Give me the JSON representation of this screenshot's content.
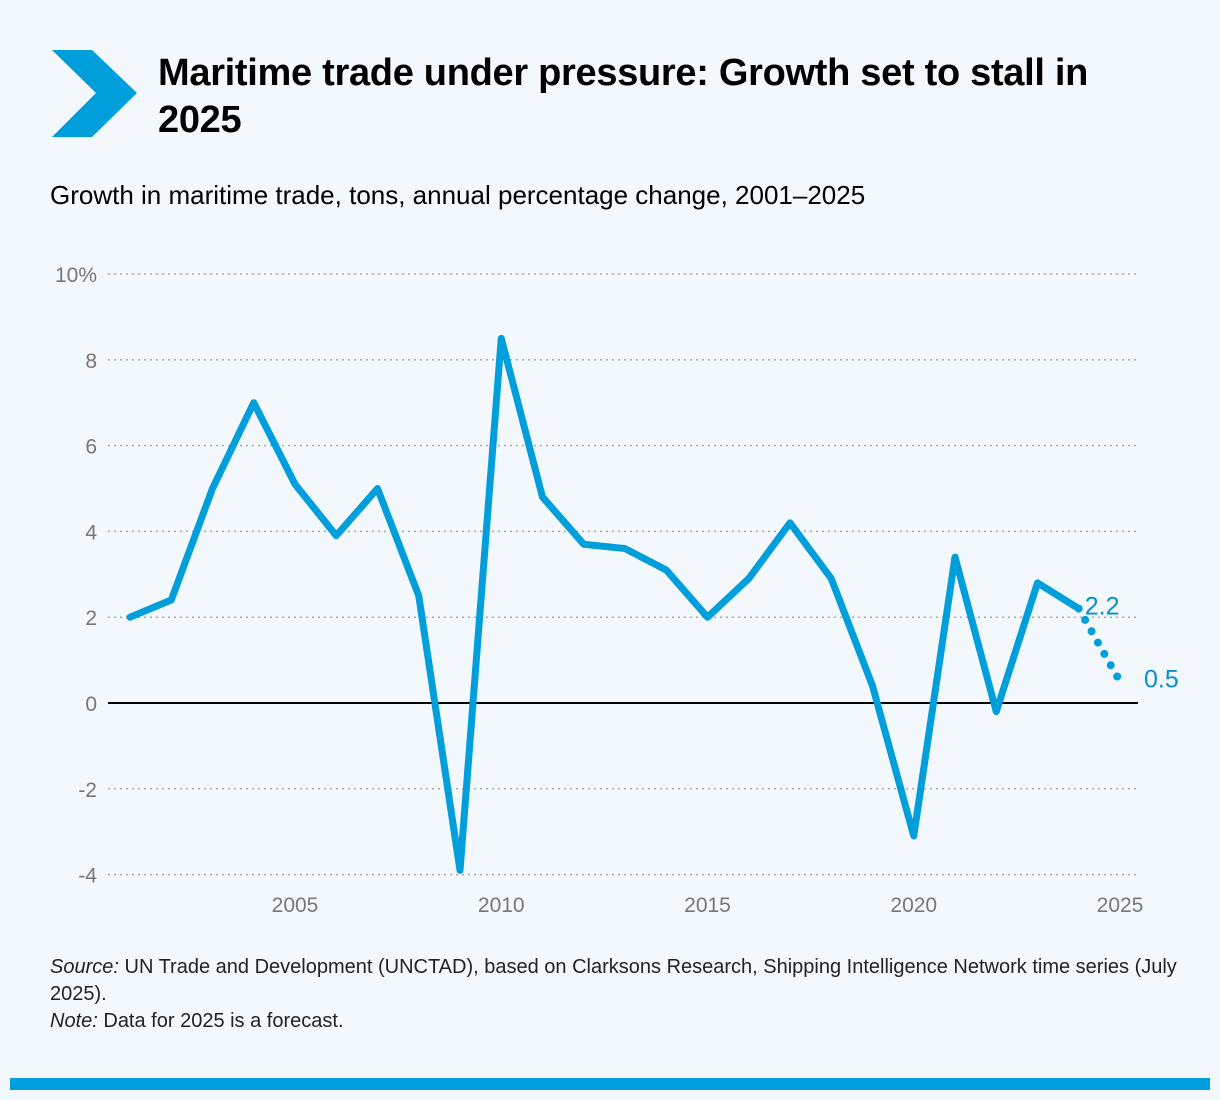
{
  "title": "Maritime trade under pressure: Growth set to stall in 2025",
  "subtitle": "Growth in maritime trade, tons, annual percentage change, 2001–2025",
  "source_label": "Source:",
  "source_text": " UN Trade and Development (UNCTAD), based on Clarksons Research, Shipping Intelligence Network time series (July 2025).",
  "note_label": "Note:",
  "note_text": " Data for 2025 is a forecast.",
  "colors": {
    "accent": "#009edb",
    "grid": "#aaaaaa",
    "zero_line": "#000000",
    "background": "#f3f8fc"
  },
  "icons": {
    "logo": "chevron-right-icon"
  },
  "chart_data": {
    "type": "line",
    "title": "Growth in maritime trade, tons, annual percentage change, 2001–2025",
    "xlabel": "",
    "ylabel": "",
    "x": [
      2001,
      2002,
      2003,
      2004,
      2005,
      2006,
      2007,
      2008,
      2009,
      2010,
      2011,
      2012,
      2013,
      2014,
      2015,
      2016,
      2017,
      2018,
      2019,
      2020,
      2021,
      2022,
      2023,
      2024,
      2025
    ],
    "series": [
      {
        "values": [
          2.0,
          2.4,
          5.0,
          7.0,
          5.1,
          3.9,
          5.0,
          2.5,
          -3.9,
          8.5,
          4.8,
          3.7,
          3.6,
          3.1,
          2.0,
          2.9,
          4.2,
          2.9,
          0.4,
          -3.1,
          3.4,
          -0.2,
          2.8,
          2.2,
          0.5
        ],
        "forecast_from": 2024,
        "color": "#009edb"
      }
    ],
    "xlim": [
      2001,
      2025
    ],
    "ylim": [
      -4,
      10
    ],
    "yticks": [
      -4,
      -2,
      0,
      2,
      4,
      6,
      8,
      10
    ],
    "ytick_labels": [
      "-4",
      "-2",
      "0",
      "2",
      "4",
      "6",
      "8",
      "10%"
    ],
    "xticks": [
      2005,
      2010,
      2015,
      2020,
      2025
    ],
    "xtick_labels": [
      "2005",
      "2010",
      "2015",
      "2020",
      "2025"
    ],
    "annotations": [
      {
        "x": 2024,
        "label": "2.2"
      },
      {
        "x": 2025,
        "label": "0.5"
      }
    ],
    "grid": "horizontal dotted",
    "legend": "none"
  }
}
